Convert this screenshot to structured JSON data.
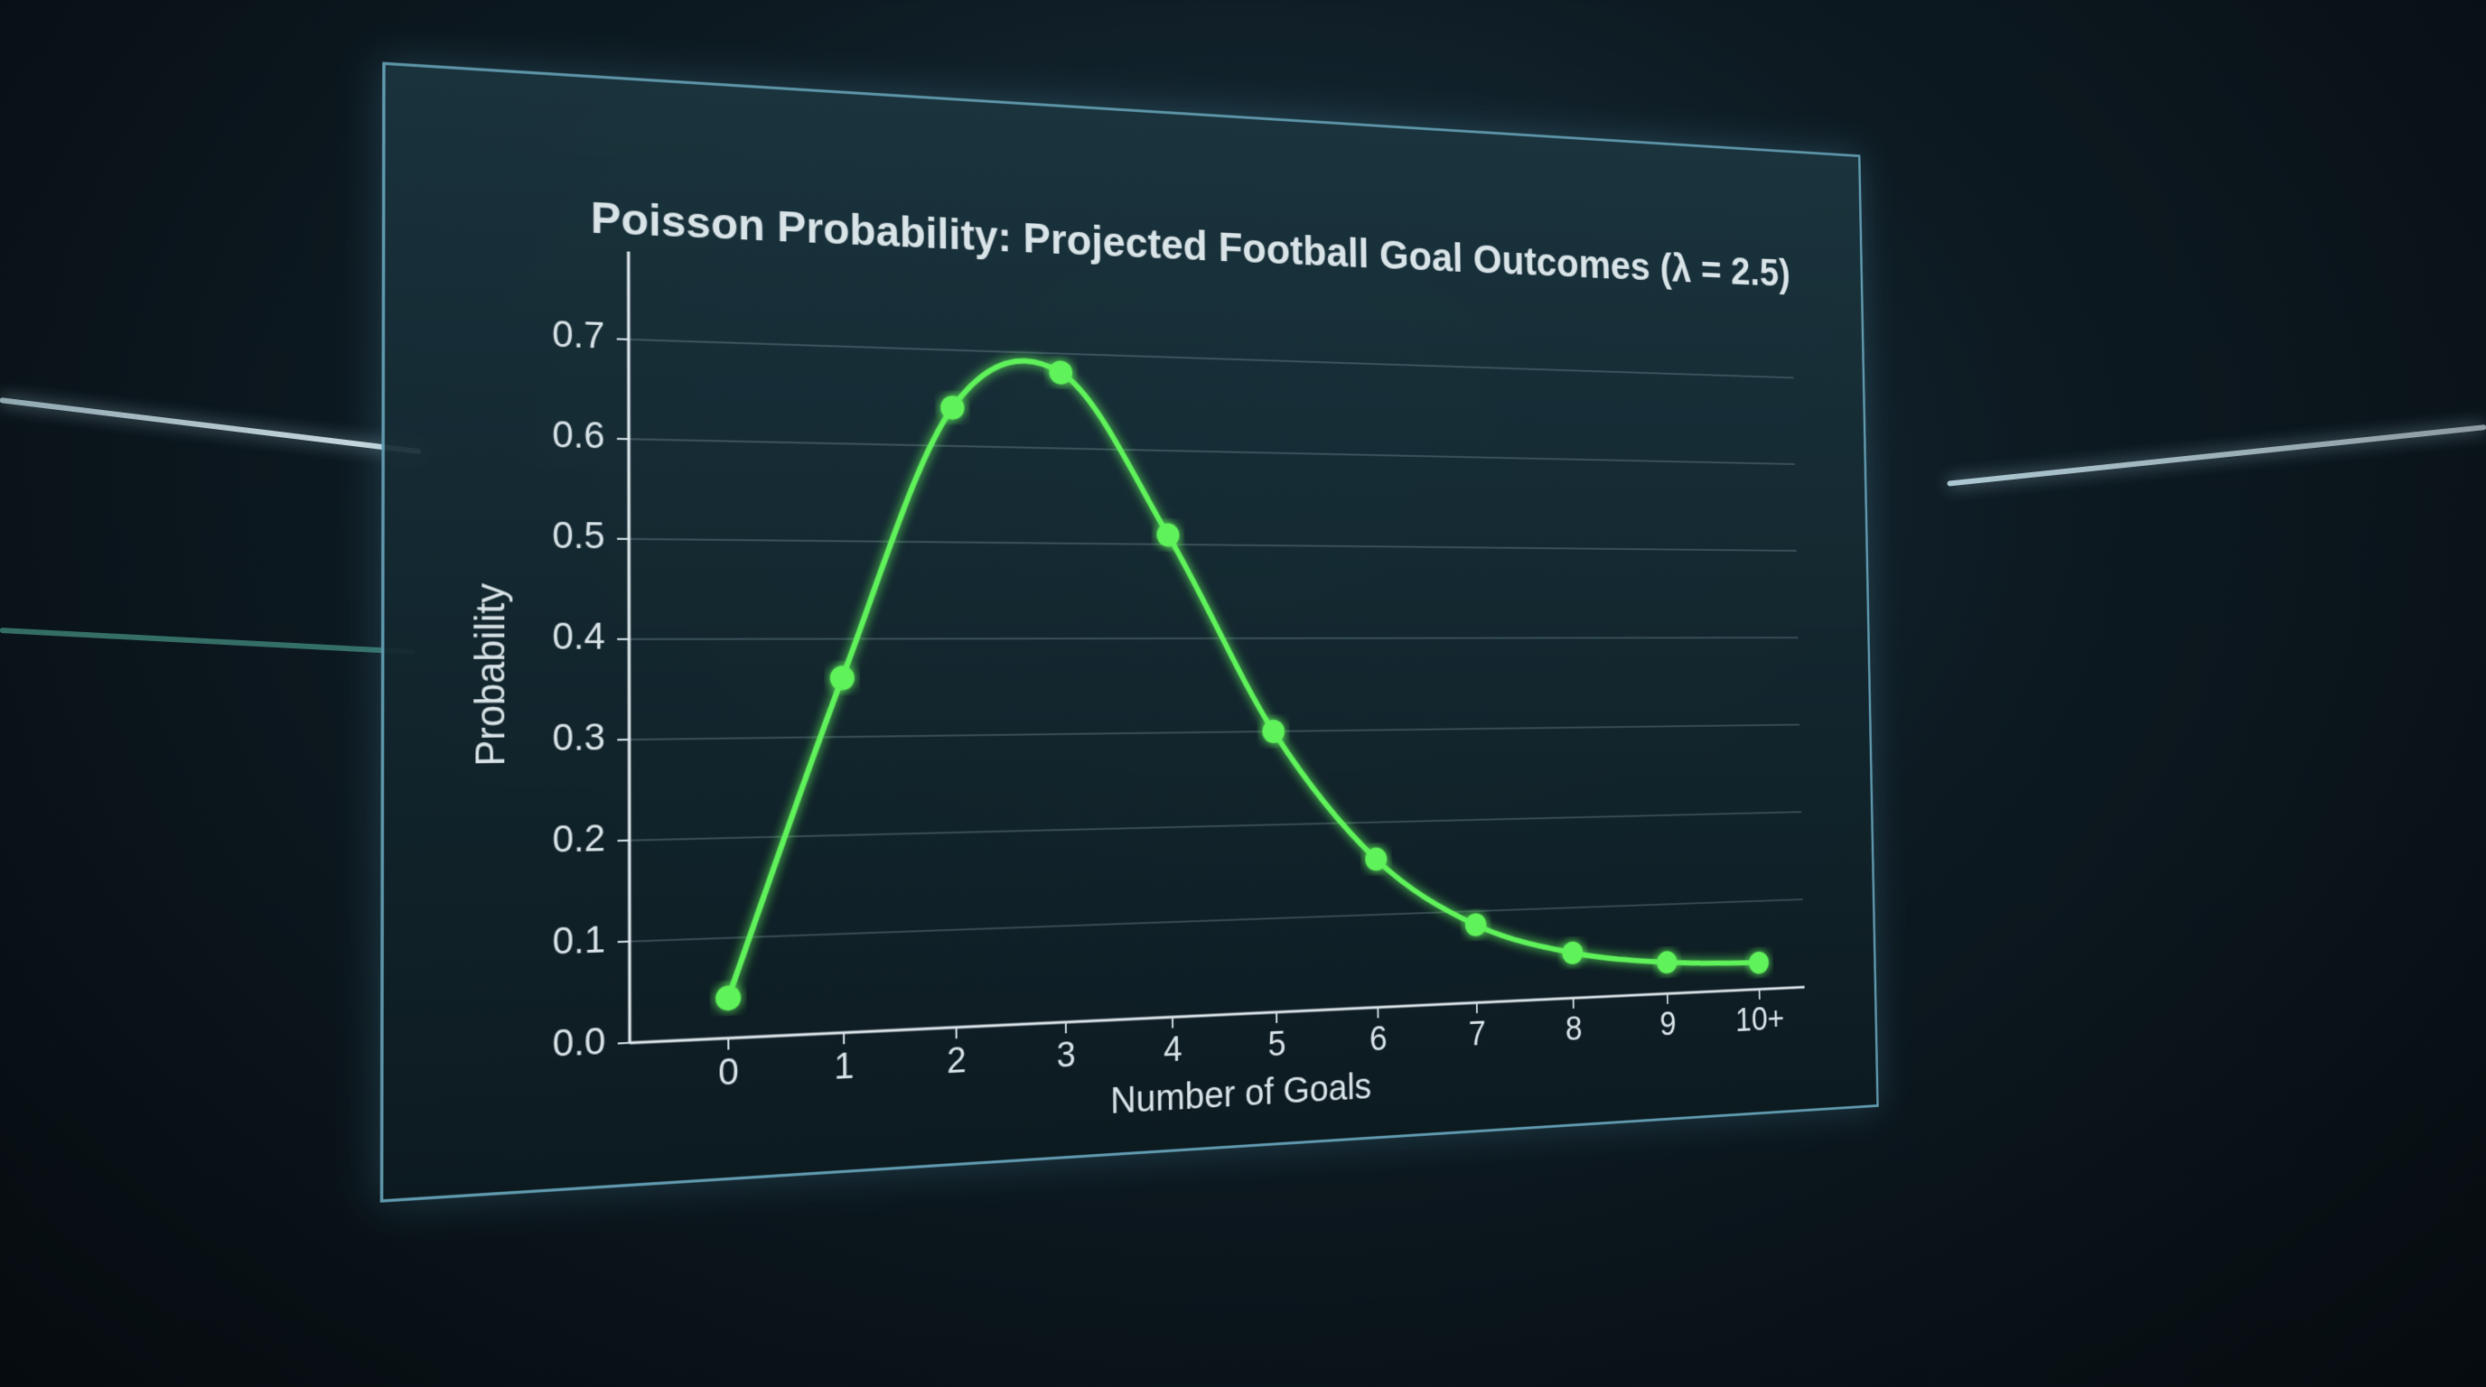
{
  "chart_data": {
    "type": "line",
    "title": "Poisson Probability: Projected Football Goal Outcomes (λ = 2.5)",
    "x_label": "Number of Goals",
    "y_label": "Probability",
    "categories": [
      "0",
      "1",
      "2",
      "3",
      "4",
      "5",
      "6",
      "7",
      "8",
      "9",
      "10+"
    ],
    "values": [
      0.04,
      0.36,
      0.64,
      0.68,
      0.51,
      0.3,
      0.16,
      0.085,
      0.05,
      0.035,
      0.03
    ],
    "color": "#5ff25a",
    "ylim": [
      0,
      0.75
    ],
    "yticks": [
      {
        "value": 0,
        "label": "0.0"
      },
      0.1,
      0.2,
      0.3,
      0.4,
      0.5,
      0.6,
      0.7
    ],
    "grid": true
  }
}
